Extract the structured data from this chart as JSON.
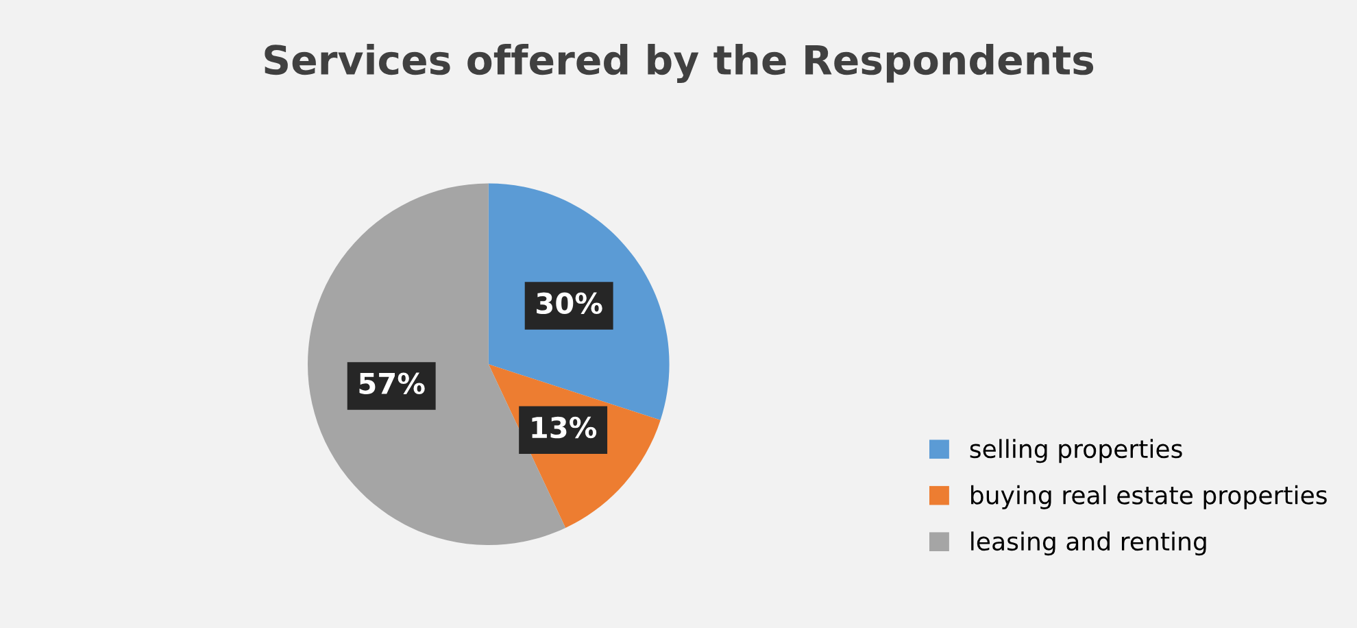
{
  "chart_data": {
    "type": "pie",
    "title": "Services offered by the Respondents",
    "categories": [
      "selling properties",
      "buying real estate properties",
      "leasing and renting"
    ],
    "values": [
      30,
      13,
      57
    ],
    "colors": [
      "#5b9bd5",
      "#ed7d31",
      "#a5a5a5"
    ],
    "value_labels": [
      "30%",
      "13%",
      "57%"
    ],
    "legend": "bottom right"
  }
}
